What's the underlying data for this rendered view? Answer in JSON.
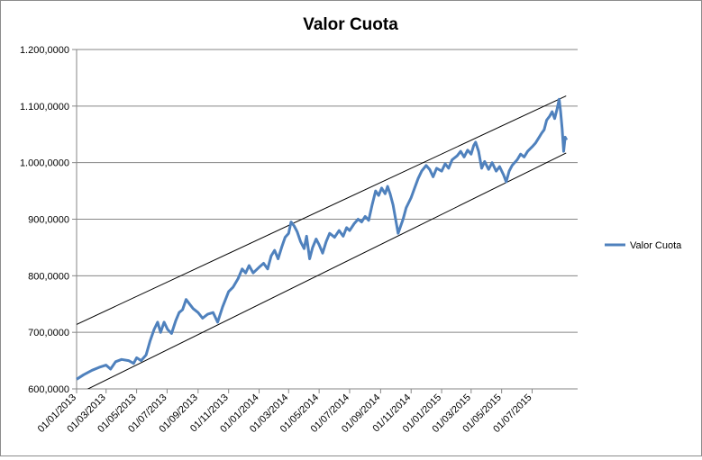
{
  "chart_data": {
    "type": "line",
    "title": "Valor Cuota",
    "xlabel": "",
    "ylabel": "",
    "ylim": [
      600000,
      1200000
    ],
    "yticks": [
      "600,0000",
      "700,0000",
      "800,0000",
      "900,0000",
      "1.000,0000",
      "1.100,0000",
      "1.200,0000"
    ],
    "ytick_values": [
      600000,
      700000,
      800000,
      900000,
      1000000,
      1100000,
      1200000
    ],
    "xlim": [
      "2013-01-01",
      "2015-09-30"
    ],
    "xticks": [
      "01/01/2013",
      "01/03/2013",
      "01/05/2013",
      "01/07/2013",
      "01/09/2013",
      "01/11/2013",
      "01/01/2014",
      "01/03/2014",
      "01/05/2014",
      "01/07/2014",
      "01/09/2014",
      "01/11/2014",
      "01/01/2015",
      "01/03/2015",
      "01/05/2015",
      "01/07/2015"
    ],
    "xtick_dates": [
      "2013-01-01",
      "2013-03-01",
      "2013-05-01",
      "2013-07-01",
      "2013-09-01",
      "2013-11-01",
      "2014-01-01",
      "2014-03-01",
      "2014-05-01",
      "2014-07-01",
      "2014-09-01",
      "2014-11-01",
      "2015-01-01",
      "2015-03-01",
      "2015-05-01",
      "2015-07-01"
    ],
    "grid": "horizontal",
    "legend": "right",
    "series": [
      {
        "name": "Valor Cuota",
        "color": "#4f81bd",
        "points": [
          [
            "2013-01-01",
            617000
          ],
          [
            "2013-01-15",
            625000
          ],
          [
            "2013-02-01",
            633000
          ],
          [
            "2013-02-15",
            638000
          ],
          [
            "2013-03-01",
            642000
          ],
          [
            "2013-03-10",
            635000
          ],
          [
            "2013-03-20",
            648000
          ],
          [
            "2013-04-01",
            652000
          ],
          [
            "2013-04-15",
            650000
          ],
          [
            "2013-04-25",
            645000
          ],
          [
            "2013-05-01",
            655000
          ],
          [
            "2013-05-10",
            650000
          ],
          [
            "2013-05-20",
            660000
          ],
          [
            "2013-05-28",
            685000
          ],
          [
            "2013-06-05",
            705000
          ],
          [
            "2013-06-12",
            718000
          ],
          [
            "2013-06-18",
            700000
          ],
          [
            "2013-06-25",
            718000
          ],
          [
            "2013-07-02",
            705000
          ],
          [
            "2013-07-10",
            698000
          ],
          [
            "2013-07-18",
            720000
          ],
          [
            "2013-07-25",
            735000
          ],
          [
            "2013-08-01",
            740000
          ],
          [
            "2013-08-08",
            758000
          ],
          [
            "2013-08-15",
            750000
          ],
          [
            "2013-08-22",
            742000
          ],
          [
            "2013-09-01",
            735000
          ],
          [
            "2013-09-10",
            725000
          ],
          [
            "2013-09-20",
            732000
          ],
          [
            "2013-10-01",
            735000
          ],
          [
            "2013-10-10",
            718000
          ],
          [
            "2013-10-20",
            745000
          ],
          [
            "2013-11-01",
            772000
          ],
          [
            "2013-11-10",
            780000
          ],
          [
            "2013-11-20",
            795000
          ],
          [
            "2013-11-28",
            812000
          ],
          [
            "2013-12-05",
            805000
          ],
          [
            "2013-12-12",
            818000
          ],
          [
            "2013-12-20",
            805000
          ],
          [
            "2014-01-01",
            815000
          ],
          [
            "2014-01-10",
            822000
          ],
          [
            "2014-01-18",
            812000
          ],
          [
            "2014-01-25",
            835000
          ],
          [
            "2014-02-01",
            845000
          ],
          [
            "2014-02-08",
            830000
          ],
          [
            "2014-02-15",
            850000
          ],
          [
            "2014-02-22",
            868000
          ],
          [
            "2014-03-01",
            875000
          ],
          [
            "2014-03-06",
            895000
          ],
          [
            "2014-03-12",
            888000
          ],
          [
            "2014-03-18",
            878000
          ],
          [
            "2014-03-25",
            860000
          ],
          [
            "2014-04-01",
            848000
          ],
          [
            "2014-04-06",
            870000
          ],
          [
            "2014-04-12",
            830000
          ],
          [
            "2014-04-18",
            850000
          ],
          [
            "2014-04-25",
            865000
          ],
          [
            "2014-05-01",
            855000
          ],
          [
            "2014-05-08",
            840000
          ],
          [
            "2014-05-15",
            860000
          ],
          [
            "2014-05-22",
            875000
          ],
          [
            "2014-06-01",
            868000
          ],
          [
            "2014-06-10",
            880000
          ],
          [
            "2014-06-18",
            870000
          ],
          [
            "2014-06-25",
            885000
          ],
          [
            "2014-07-01",
            880000
          ],
          [
            "2014-07-10",
            892000
          ],
          [
            "2014-07-18",
            900000
          ],
          [
            "2014-07-25",
            895000
          ],
          [
            "2014-08-01",
            905000
          ],
          [
            "2014-08-08",
            898000
          ],
          [
            "2014-08-15",
            925000
          ],
          [
            "2014-08-22",
            950000
          ],
          [
            "2014-08-28",
            942000
          ],
          [
            "2014-09-03",
            955000
          ],
          [
            "2014-09-10",
            945000
          ],
          [
            "2014-09-15",
            958000
          ],
          [
            "2014-09-20",
            945000
          ],
          [
            "2014-09-26",
            925000
          ],
          [
            "2014-10-01",
            900000
          ],
          [
            "2014-10-06",
            875000
          ],
          [
            "2014-10-10",
            885000
          ],
          [
            "2014-10-16",
            900000
          ],
          [
            "2014-10-22",
            920000
          ],
          [
            "2014-11-01",
            938000
          ],
          [
            "2014-11-08",
            955000
          ],
          [
            "2014-11-15",
            972000
          ],
          [
            "2014-11-22",
            985000
          ],
          [
            "2014-12-01",
            995000
          ],
          [
            "2014-12-08",
            988000
          ],
          [
            "2014-12-15",
            975000
          ],
          [
            "2014-12-22",
            990000
          ],
          [
            "2015-01-01",
            985000
          ],
          [
            "2015-01-08",
            998000
          ],
          [
            "2015-01-15",
            990000
          ],
          [
            "2015-01-22",
            1005000
          ],
          [
            "2015-02-01",
            1012000
          ],
          [
            "2015-02-08",
            1020000
          ],
          [
            "2015-02-15",
            1010000
          ],
          [
            "2015-02-22",
            1022000
          ],
          [
            "2015-03-01",
            1015000
          ],
          [
            "2015-03-06",
            1030000
          ],
          [
            "2015-03-10",
            1036000
          ],
          [
            "2015-03-16",
            1020000
          ],
          [
            "2015-03-22",
            990000
          ],
          [
            "2015-03-28",
            1002000
          ],
          [
            "2015-04-05",
            988000
          ],
          [
            "2015-04-12",
            1000000
          ],
          [
            "2015-04-20",
            985000
          ],
          [
            "2015-04-27",
            993000
          ],
          [
            "2015-05-05",
            978000
          ],
          [
            "2015-05-10",
            966000
          ],
          [
            "2015-05-16",
            985000
          ],
          [
            "2015-05-22",
            995000
          ],
          [
            "2015-06-01",
            1005000
          ],
          [
            "2015-06-08",
            1015000
          ],
          [
            "2015-06-15",
            1010000
          ],
          [
            "2015-06-22",
            1020000
          ],
          [
            "2015-07-01",
            1028000
          ],
          [
            "2015-07-08",
            1035000
          ],
          [
            "2015-07-15",
            1045000
          ],
          [
            "2015-07-20",
            1052000
          ],
          [
            "2015-07-25",
            1058000
          ],
          [
            "2015-07-30",
            1075000
          ],
          [
            "2015-08-05",
            1082000
          ],
          [
            "2015-08-10",
            1090000
          ],
          [
            "2015-08-15",
            1078000
          ],
          [
            "2015-08-20",
            1095000
          ],
          [
            "2015-08-24",
            1112000
          ],
          [
            "2015-08-27",
            1090000
          ],
          [
            "2015-08-30",
            1060000
          ],
          [
            "2015-09-02",
            1020000
          ],
          [
            "2015-09-05",
            1045000
          ],
          [
            "2015-09-08",
            1040000
          ]
        ]
      }
    ],
    "trend_channel": {
      "color": "#000000",
      "upper": [
        [
          "2013-01-01",
          714000
        ],
        [
          "2015-09-07",
          1118000
        ]
      ],
      "lower": [
        [
          "2013-01-01",
          590000
        ],
        [
          "2015-09-07",
          1017000
        ]
      ]
    }
  }
}
